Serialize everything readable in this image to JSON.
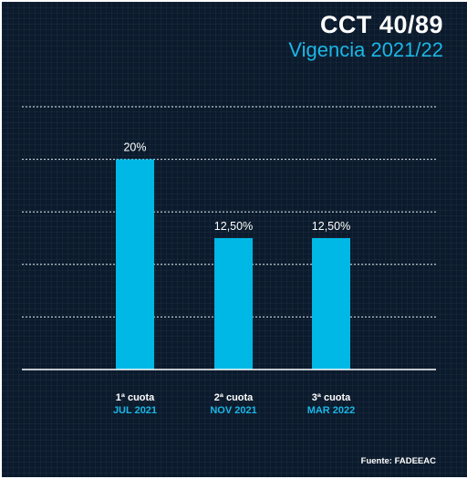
{
  "header": {
    "title": "CCT 40/89",
    "subtitle": "Vigencia 2021/22"
  },
  "footer": {
    "source": "Fuente: FADEEAC"
  },
  "colors": {
    "background": "#0b1b2d",
    "bar": "#00b8e6",
    "accent": "#1ab7e6",
    "text": "#ffffff",
    "grid": "#e6eef5"
  },
  "chart_data": {
    "type": "bar",
    "title": "CCT 40/89",
    "subtitle": "Vigencia 2021/22",
    "categories": [
      "1ª cuota",
      "2ª cuota",
      "3ª cuota"
    ],
    "sublabels": [
      "JUL 2021",
      "NOV 2021",
      "MAR 2022"
    ],
    "values": [
      20,
      12.5,
      12.5
    ],
    "data_labels": [
      "20%",
      "12,50%",
      "12,50%"
    ],
    "xlabel": "",
    "ylabel": "",
    "ylim": [
      0,
      25
    ],
    "grid": true,
    "legend": "none"
  }
}
